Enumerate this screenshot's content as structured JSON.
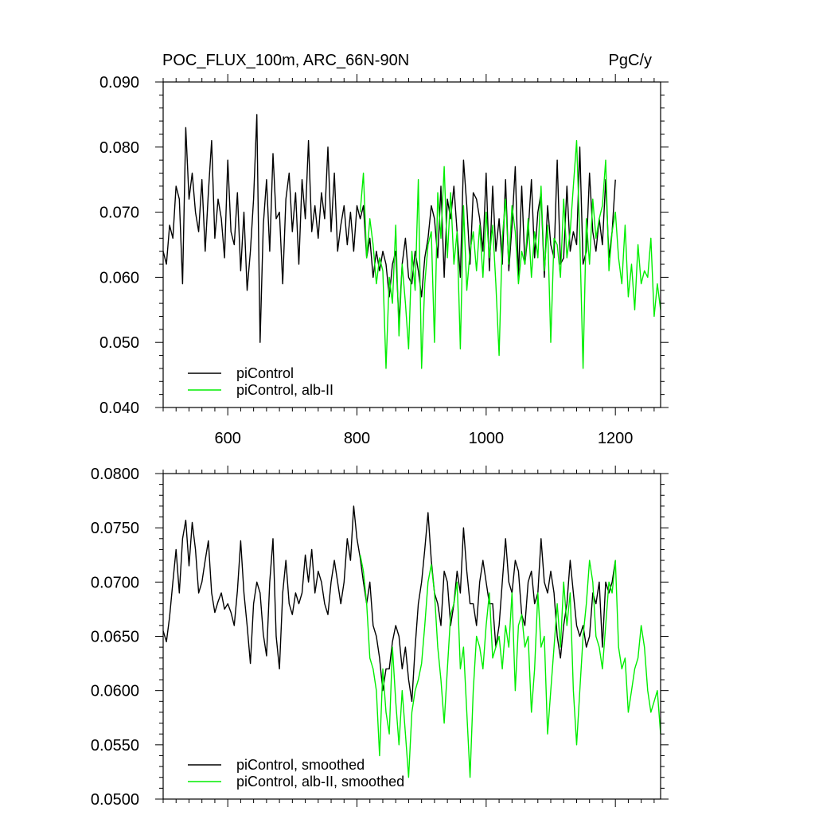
{
  "chart_data": [
    {
      "type": "line",
      "title": "POC_FLUX_100m, ARC_66N-90N",
      "units": "PgC/y",
      "xlim": [
        500,
        1270
      ],
      "ylim": [
        0.04,
        0.09
      ],
      "x_ticks": [
        600,
        800,
        1000,
        1200
      ],
      "x_tick_labels": [
        "600",
        "800",
        "1000",
        "1200"
      ],
      "y_ticks": [
        0.04,
        0.05,
        0.06,
        0.07,
        0.08,
        0.09
      ],
      "y_tick_labels": [
        "0.040",
        "0.050",
        "0.060",
        "0.070",
        "0.080",
        "0.090"
      ],
      "legend_position": "bottom-left",
      "series": [
        {
          "name": "piControl",
          "color": "#000000",
          "x": [
            500,
            505,
            510,
            515,
            520,
            525,
            530,
            535,
            540,
            545,
            550,
            555,
            560,
            565,
            570,
            575,
            580,
            585,
            590,
            595,
            600,
            605,
            610,
            615,
            620,
            625,
            630,
            635,
            640,
            645,
            650,
            655,
            660,
            665,
            670,
            675,
            680,
            685,
            690,
            695,
            700,
            705,
            710,
            715,
            720,
            725,
            730,
            735,
            740,
            745,
            750,
            755,
            760,
            765,
            770,
            775,
            780,
            785,
            790,
            795,
            800,
            805,
            810,
            815,
            820,
            825,
            830,
            835,
            840,
            845,
            850,
            855,
            860,
            865,
            870,
            875,
            880,
            885,
            890,
            895,
            900,
            905,
            910,
            915,
            920,
            925,
            930,
            935,
            940,
            945,
            950,
            955,
            960,
            965,
            970,
            975,
            980,
            985,
            990,
            995,
            1000,
            1005,
            1010,
            1015,
            1020,
            1025,
            1030,
            1035,
            1040,
            1045,
            1050,
            1055,
            1060,
            1065,
            1070,
            1075,
            1080,
            1085,
            1090,
            1095,
            1100,
            1105,
            1110,
            1115,
            1120,
            1125,
            1130,
            1135,
            1140,
            1145,
            1150,
            1155,
            1160,
            1165,
            1170,
            1175,
            1180,
            1185,
            1190,
            1195,
            1200
          ],
          "y": [
            0.064,
            0.062,
            0.068,
            0.066,
            0.074,
            0.072,
            0.059,
            0.083,
            0.072,
            0.076,
            0.07,
            0.067,
            0.075,
            0.064,
            0.073,
            0.081,
            0.066,
            0.072,
            0.069,
            0.063,
            0.078,
            0.067,
            0.065,
            0.073,
            0.061,
            0.07,
            0.058,
            0.064,
            0.072,
            0.085,
            0.05,
            0.068,
            0.075,
            0.064,
            0.079,
            0.069,
            0.07,
            0.059,
            0.072,
            0.076,
            0.067,
            0.073,
            0.062,
            0.075,
            0.069,
            0.081,
            0.067,
            0.071,
            0.066,
            0.073,
            0.069,
            0.08,
            0.067,
            0.076,
            0.064,
            0.068,
            0.071,
            0.065,
            0.07,
            0.064,
            0.071,
            0.069,
            0.071,
            0.063,
            0.066,
            0.06,
            0.064,
            0.061,
            0.064,
            0.062,
            0.057,
            0.062,
            0.064,
            0.053,
            0.062,
            0.066,
            0.06,
            0.059,
            0.064,
            0.061,
            0.057,
            0.063,
            0.066,
            0.071,
            0.069,
            0.063,
            0.074,
            0.06,
            0.072,
            0.069,
            0.074,
            0.067,
            0.06,
            0.078,
            0.071,
            0.062,
            0.073,
            0.072,
            0.069,
            0.064,
            0.076,
            0.061,
            0.074,
            0.064,
            0.069,
            0.062,
            0.075,
            0.061,
            0.068,
            0.077,
            0.06,
            0.074,
            0.062,
            0.067,
            0.075,
            0.063,
            0.07,
            0.073,
            0.06,
            0.071,
            0.065,
            0.063,
            0.078,
            0.062,
            0.063,
            0.074,
            0.064,
            0.067,
            0.065,
            0.08,
            0.062,
            0.064,
            0.076,
            0.067,
            0.064,
            0.069,
            0.065,
            0.075,
            0.063,
            0.067,
            0.075
          ]
        },
        {
          "name": "piControl, alb-II",
          "color": "#00ee00",
          "x": [
            805,
            810,
            815,
            820,
            825,
            830,
            835,
            840,
            845,
            850,
            855,
            860,
            865,
            870,
            875,
            880,
            885,
            890,
            895,
            900,
            905,
            910,
            915,
            920,
            925,
            930,
            935,
            940,
            945,
            950,
            955,
            960,
            965,
            970,
            975,
            980,
            985,
            990,
            995,
            1000,
            1005,
            1010,
            1015,
            1020,
            1025,
            1030,
            1035,
            1040,
            1045,
            1050,
            1055,
            1060,
            1065,
            1070,
            1075,
            1080,
            1085,
            1090,
            1095,
            1100,
            1105,
            1110,
            1115,
            1120,
            1125,
            1130,
            1135,
            1140,
            1145,
            1150,
            1155,
            1160,
            1165,
            1170,
            1175,
            1180,
            1185,
            1190,
            1195,
            1200,
            1205,
            1210,
            1215,
            1220,
            1225,
            1230,
            1235,
            1240,
            1245,
            1250,
            1255,
            1260,
            1265,
            1270
          ],
          "y": [
            0.07,
            0.076,
            0.063,
            0.069,
            0.065,
            0.059,
            0.063,
            0.061,
            0.046,
            0.06,
            0.056,
            0.068,
            0.051,
            0.062,
            0.056,
            0.049,
            0.064,
            0.058,
            0.075,
            0.046,
            0.059,
            0.065,
            0.067,
            0.05,
            0.073,
            0.066,
            0.077,
            0.063,
            0.073,
            0.062,
            0.067,
            0.049,
            0.071,
            0.058,
            0.064,
            0.067,
            0.061,
            0.068,
            0.06,
            0.07,
            0.063,
            0.068,
            0.059,
            0.048,
            0.066,
            0.072,
            0.062,
            0.071,
            0.067,
            0.059,
            0.064,
            0.062,
            0.069,
            0.06,
            0.067,
            0.063,
            0.074,
            0.061,
            0.068,
            0.05,
            0.066,
            0.065,
            0.06,
            0.072,
            0.063,
            0.067,
            0.074,
            0.081,
            0.066,
            0.046,
            0.069,
            0.062,
            0.072,
            0.066,
            0.069,
            0.071,
            0.078,
            0.061,
            0.067,
            0.07,
            0.063,
            0.059,
            0.068,
            0.057,
            0.062,
            0.055,
            0.065,
            0.059,
            0.061,
            0.06,
            0.066,
            0.054,
            0.059,
            0.055
          ]
        }
      ]
    },
    {
      "type": "line",
      "xlim": [
        500,
        1270
      ],
      "ylim": [
        0.05,
        0.08
      ],
      "x_ticks": [
        600,
        800,
        1000,
        1200
      ],
      "y_ticks": [
        0.05,
        0.055,
        0.06,
        0.065,
        0.07,
        0.075,
        0.08
      ],
      "y_tick_labels": [
        "0.0500",
        "0.0550",
        "0.0600",
        "0.0650",
        "0.0700",
        "0.0750",
        "0.0800"
      ],
      "legend_position": "bottom-left",
      "series": [
        {
          "name": "piControl, smoothed",
          "color": "#000000",
          "x": [
            500,
            505,
            510,
            515,
            520,
            525,
            530,
            535,
            540,
            545,
            550,
            555,
            560,
            565,
            570,
            575,
            580,
            585,
            590,
            595,
            600,
            605,
            610,
            615,
            620,
            625,
            630,
            635,
            640,
            645,
            650,
            655,
            660,
            665,
            670,
            675,
            680,
            685,
            690,
            695,
            700,
            705,
            710,
            715,
            720,
            725,
            730,
            735,
            740,
            745,
            750,
            755,
            760,
            765,
            770,
            775,
            780,
            785,
            790,
            795,
            800,
            805,
            810,
            815,
            820,
            825,
            830,
            835,
            840,
            845,
            850,
            855,
            860,
            865,
            870,
            875,
            880,
            885,
            890,
            895,
            900,
            905,
            910,
            915,
            920,
            925,
            930,
            935,
            940,
            945,
            950,
            955,
            960,
            965,
            970,
            975,
            980,
            985,
            990,
            995,
            1000,
            1005,
            1010,
            1015,
            1020,
            1025,
            1030,
            1035,
            1040,
            1045,
            1050,
            1055,
            1060,
            1065,
            1070,
            1075,
            1080,
            1085,
            1090,
            1095,
            1100,
            1105,
            1110,
            1115,
            1120,
            1125,
            1130,
            1135,
            1140,
            1145,
            1150,
            1155,
            1160,
            1165,
            1170,
            1175,
            1180,
            1185,
            1190,
            1195,
            1200
          ],
          "y": [
            0.0655,
            0.0645,
            0.0668,
            0.07,
            0.073,
            0.069,
            0.074,
            0.0757,
            0.0715,
            0.0755,
            0.073,
            0.069,
            0.07,
            0.072,
            0.0738,
            0.069,
            0.0672,
            0.0682,
            0.069,
            0.0675,
            0.068,
            0.0672,
            0.066,
            0.0692,
            0.0738,
            0.069,
            0.066,
            0.0625,
            0.068,
            0.07,
            0.069,
            0.0652,
            0.0632,
            0.07,
            0.074,
            0.065,
            0.062,
            0.069,
            0.072,
            0.068,
            0.067,
            0.069,
            0.068,
            0.069,
            0.0725,
            0.07,
            0.073,
            0.069,
            0.071,
            0.07,
            0.068,
            0.067,
            0.07,
            0.072,
            0.07,
            0.068,
            0.07,
            0.074,
            0.072,
            0.077,
            0.074,
            0.0722,
            0.07,
            0.068,
            0.07,
            0.066,
            0.065,
            0.063,
            0.06,
            0.062,
            0.062,
            0.0645,
            0.066,
            0.065,
            0.062,
            0.064,
            0.061,
            0.059,
            0.064,
            0.068,
            0.07,
            0.073,
            0.0764,
            0.072,
            0.069,
            0.068,
            0.066,
            0.071,
            0.07,
            0.066,
            0.068,
            0.071,
            0.069,
            0.075,
            0.071,
            0.068,
            0.068,
            0.066,
            0.07,
            0.072,
            0.07,
            0.068,
            0.068,
            0.064,
            0.066,
            0.07,
            0.074,
            0.07,
            0.069,
            0.072,
            0.071,
            0.067,
            0.066,
            0.07,
            0.071,
            0.068,
            0.069,
            0.074,
            0.07,
            0.069,
            0.071,
            0.069,
            0.065,
            0.063,
            0.066,
            0.068,
            0.072,
            0.069,
            0.066,
            0.065,
            0.066,
            0.064,
            0.065,
            0.069,
            0.068,
            0.07,
            0.064,
            0.07,
            0.069,
            0.07,
            0.072
          ]
        },
        {
          "name": "piControl, alb-II, smoothed",
          "color": "#00ee00",
          "x": [
            805,
            810,
            815,
            820,
            825,
            830,
            835,
            840,
            845,
            850,
            855,
            860,
            865,
            870,
            875,
            880,
            885,
            890,
            895,
            900,
            905,
            910,
            915,
            920,
            925,
            930,
            935,
            940,
            945,
            950,
            955,
            960,
            965,
            970,
            975,
            980,
            985,
            990,
            995,
            1000,
            1005,
            1010,
            1015,
            1020,
            1025,
            1030,
            1035,
            1040,
            1045,
            1050,
            1055,
            1060,
            1065,
            1070,
            1075,
            1080,
            1085,
            1090,
            1095,
            1100,
            1105,
            1110,
            1115,
            1120,
            1125,
            1130,
            1135,
            1140,
            1145,
            1150,
            1155,
            1160,
            1165,
            1170,
            1175,
            1180,
            1185,
            1190,
            1195,
            1200,
            1205,
            1210,
            1215,
            1220,
            1225,
            1230,
            1235,
            1240,
            1245,
            1250,
            1255,
            1260,
            1265,
            1270
          ],
          "y": [
            0.0725,
            0.071,
            0.068,
            0.063,
            0.062,
            0.06,
            0.054,
            0.062,
            0.058,
            0.056,
            0.064,
            0.059,
            0.055,
            0.06,
            0.056,
            0.052,
            0.058,
            0.06,
            0.061,
            0.0625,
            0.066,
            0.07,
            0.0716,
            0.069,
            0.064,
            0.061,
            0.057,
            0.062,
            0.067,
            0.068,
            0.07,
            0.062,
            0.064,
            0.058,
            0.052,
            0.06,
            0.065,
            0.064,
            0.062,
            0.066,
            0.069,
            0.063,
            0.064,
            0.065,
            0.062,
            0.066,
            0.064,
            0.069,
            0.06,
            0.066,
            0.067,
            0.064,
            0.065,
            0.058,
            0.062,
            0.069,
            0.064,
            0.065,
            0.056,
            0.06,
            0.064,
            0.068,
            0.064,
            0.07,
            0.066,
            0.069,
            0.06,
            0.055,
            0.06,
            0.065,
            0.068,
            0.072,
            0.07,
            0.065,
            0.064,
            0.062,
            0.066,
            0.07,
            0.069,
            0.072,
            0.064,
            0.062,
            0.063,
            0.058,
            0.06,
            0.062,
            0.063,
            0.066,
            0.064,
            0.06,
            0.058,
            0.059,
            0.06,
            0.056
          ]
        }
      ]
    }
  ]
}
